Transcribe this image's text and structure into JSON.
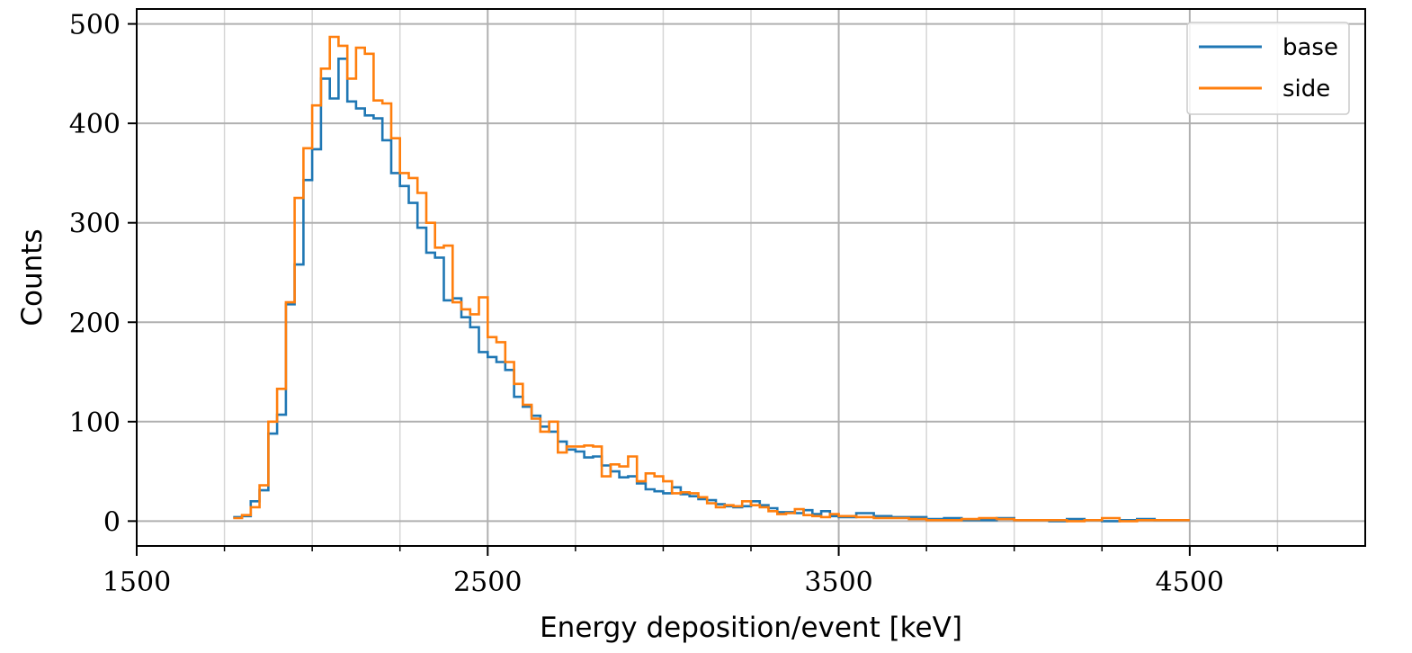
{
  "chart_data": {
    "type": "line",
    "step": true,
    "xlabel": "Energy deposition/event [keV]",
    "ylabel": "Counts",
    "xlim": [
      1500,
      5000
    ],
    "ylim": [
      -25,
      515
    ],
    "xticks_major": [
      1500,
      2500,
      3500,
      4500
    ],
    "xticks_minor": [
      1750,
      2000,
      2250,
      2750,
      3000,
      3250,
      3750,
      4000,
      4250,
      4750
    ],
    "yticks": [
      0,
      100,
      200,
      300,
      400,
      500
    ],
    "grid": true,
    "legend_position": "top-right",
    "series": [
      {
        "name": "base",
        "color": "#1f77b4",
        "x": [
          1775,
          1800,
          1825,
          1850,
          1875,
          1900,
          1925,
          1950,
          1975,
          2000,
          2025,
          2050,
          2075,
          2100,
          2125,
          2150,
          2175,
          2200,
          2225,
          2250,
          2275,
          2300,
          2325,
          2350,
          2375,
          2400,
          2425,
          2450,
          2475,
          2500,
          2525,
          2550,
          2575,
          2600,
          2625,
          2650,
          2675,
          2700,
          2725,
          2750,
          2775,
          2800,
          2825,
          2850,
          2875,
          2900,
          2925,
          2950,
          2975,
          3000,
          3025,
          3050,
          3075,
          3100,
          3125,
          3150,
          3175,
          3200,
          3225,
          3250,
          3275,
          3300,
          3325,
          3350,
          3375,
          3400,
          3425,
          3450,
          3475,
          3500,
          3550,
          3600,
          3650,
          3700,
          3750,
          3800,
          3850,
          3900,
          3950,
          4000,
          4050,
          4100,
          4150,
          4200,
          4250,
          4300,
          4350,
          4400,
          4450,
          4475
        ],
        "values": [
          4,
          5,
          20,
          31,
          88,
          107,
          218,
          258,
          343,
          374,
          445,
          425,
          465,
          422,
          415,
          408,
          405,
          383,
          350,
          337,
          320,
          295,
          270,
          265,
          222,
          224,
          205,
          195,
          170,
          165,
          160,
          152,
          125,
          115,
          106,
          95,
          90,
          80,
          72,
          70,
          64,
          65,
          56,
          50,
          44,
          45,
          38,
          32,
          30,
          28,
          34,
          27,
          25,
          22,
          21,
          17,
          15,
          14,
          15,
          20,
          16,
          13,
          9,
          9,
          8,
          11,
          7,
          10,
          5,
          4,
          8,
          5,
          4,
          4,
          2,
          3,
          1,
          1,
          3,
          1,
          1,
          0,
          2,
          1,
          0,
          1,
          2,
          1,
          1,
          1
        ]
      },
      {
        "name": "side",
        "color": "#ff7f0e",
        "x": [
          1775,
          1800,
          1825,
          1850,
          1875,
          1900,
          1925,
          1950,
          1975,
          2000,
          2025,
          2050,
          2075,
          2100,
          2125,
          2150,
          2175,
          2200,
          2225,
          2250,
          2275,
          2300,
          2325,
          2350,
          2375,
          2400,
          2425,
          2450,
          2475,
          2500,
          2525,
          2550,
          2575,
          2600,
          2625,
          2650,
          2675,
          2700,
          2725,
          2750,
          2775,
          2800,
          2825,
          2850,
          2875,
          2900,
          2925,
          2950,
          2975,
          3000,
          3025,
          3050,
          3075,
          3100,
          3125,
          3150,
          3175,
          3200,
          3225,
          3250,
          3275,
          3300,
          3325,
          3350,
          3375,
          3400,
          3425,
          3450,
          3475,
          3500,
          3550,
          3600,
          3650,
          3700,
          3750,
          3800,
          3850,
          3900,
          3950,
          4000,
          4050,
          4100,
          4150,
          4200,
          4250,
          4300,
          4350,
          4400,
          4450,
          4475
        ],
        "values": [
          3,
          6,
          14,
          36,
          100,
          133,
          220,
          325,
          375,
          418,
          455,
          487,
          478,
          445,
          476,
          470,
          423,
          420,
          385,
          350,
          345,
          330,
          300,
          275,
          277,
          220,
          213,
          208,
          225,
          185,
          180,
          160,
          138,
          117,
          103,
          90,
          100,
          69,
          75,
          75,
          76,
          75,
          45,
          57,
          55,
          65,
          40,
          48,
          45,
          40,
          28,
          29,
          28,
          24,
          18,
          14,
          16,
          15,
          20,
          16,
          14,
          10,
          7,
          8,
          12,
          6,
          5,
          4,
          7,
          5,
          4,
          3,
          3,
          2,
          1,
          1,
          2,
          3,
          2,
          1,
          1,
          1,
          0,
          1,
          3,
          0,
          1,
          1,
          1,
          1
        ]
      }
    ]
  }
}
